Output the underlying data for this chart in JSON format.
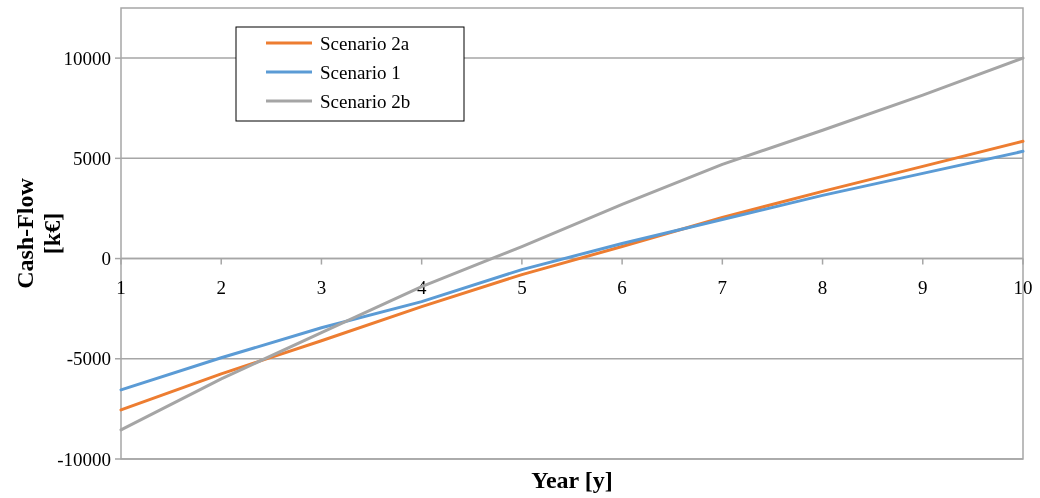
{
  "chart_data": {
    "type": "line",
    "xlabel": "Year [y]",
    "ylabel": "Cash-Flow [k€]",
    "x": [
      1,
      2,
      3,
      4,
      5,
      6,
      7,
      8,
      9,
      10
    ],
    "xlim": [
      1,
      10
    ],
    "xticks": [
      1,
      2,
      3,
      4,
      5,
      6,
      7,
      8,
      9,
      10
    ],
    "ylim": [
      -10000,
      12500
    ],
    "yticks": [
      -10000,
      -5000,
      0,
      5000,
      10000
    ],
    "grid": "y",
    "legend": "top left",
    "marker": "none",
    "line_style": "solid",
    "series": [
      {
        "name": "Scenario 2a",
        "color": "#ed7d31",
        "values": [
          -7550,
          -5750,
          -4100,
          -2400,
          -800,
          600,
          2050,
          3350,
          4600,
          5850
        ]
      },
      {
        "name": "Scenario 1",
        "color": "#5b9bd5",
        "values": [
          -6550,
          -4950,
          -3450,
          -2150,
          -550,
          750,
          1950,
          3150,
          4250,
          5350
        ]
      },
      {
        "name": "Scenario 2b",
        "color": "#a5a5a5",
        "values": [
          -8550,
          -6000,
          -3700,
          -1400,
          600,
          2700,
          4700,
          6400,
          8150,
          10000
        ]
      }
    ]
  }
}
